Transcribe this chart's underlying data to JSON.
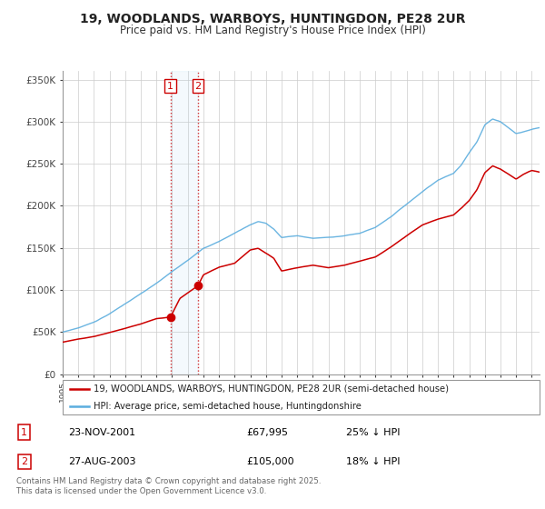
{
  "title": "19, WOODLANDS, WARBOYS, HUNTINGDON, PE28 2UR",
  "subtitle": "Price paid vs. HM Land Registry's House Price Index (HPI)",
  "legend_line1": "19, WOODLANDS, WARBOYS, HUNTINGDON, PE28 2UR (semi-detached house)",
  "legend_line2": "HPI: Average price, semi-detached house, Huntingdonshire",
  "sale1_date": "23-NOV-2001",
  "sale1_price": "£67,995",
  "sale1_hpi": "25% ↓ HPI",
  "sale2_date": "27-AUG-2003",
  "sale2_price": "£105,000",
  "sale2_hpi": "18% ↓ HPI",
  "footer": "Contains HM Land Registry data © Crown copyright and database right 2025.\nThis data is licensed under the Open Government Licence v3.0.",
  "hpi_color": "#5badde",
  "price_color": "#cc0000",
  "sale1_x": 2001.9,
  "sale1_y": 67995,
  "sale2_x": 2003.65,
  "sale2_y": 105000,
  "ylim": [
    0,
    360000
  ],
  "xlim_start": 1995,
  "xlim_end": 2025.5,
  "grid_color": "#cccccc",
  "hpi_knots_x": [
    1995,
    1996,
    1997,
    1998,
    1999,
    2000,
    2001,
    2002,
    2003,
    2004,
    2005,
    2006,
    2007,
    2007.5,
    2008,
    2008.5,
    2009,
    2010,
    2011,
    2012,
    2013,
    2014,
    2015,
    2016,
    2017,
    2018,
    2019,
    2020,
    2020.5,
    2021,
    2021.5,
    2022,
    2022.5,
    2023,
    2023.5,
    2024,
    2024.5,
    2025,
    2025.5
  ],
  "hpi_knots_y": [
    50000,
    55000,
    62000,
    72000,
    84000,
    96000,
    108000,
    122000,
    135000,
    150000,
    158000,
    168000,
    178000,
    182000,
    180000,
    173000,
    163000,
    165000,
    162000,
    163000,
    165000,
    168000,
    175000,
    188000,
    203000,
    218000,
    232000,
    240000,
    250000,
    265000,
    278000,
    298000,
    305000,
    302000,
    295000,
    288000,
    290000,
    293000,
    295000
  ],
  "price_knots_x": [
    1995,
    1996,
    1997,
    1998,
    1999,
    2000,
    2001,
    2001.9,
    2002.5,
    2003.65,
    2004,
    2005,
    2006,
    2007,
    2007.5,
    2008,
    2008.5,
    2009,
    2010,
    2011,
    2012,
    2013,
    2014,
    2015,
    2016,
    2017,
    2018,
    2019,
    2020,
    2020.5,
    2021,
    2021.5,
    2022,
    2022.5,
    2023,
    2023.5,
    2024,
    2024.5,
    2025,
    2025.5
  ],
  "price_knots_y": [
    38000,
    42000,
    45000,
    50000,
    55000,
    60000,
    66000,
    67995,
    90000,
    105000,
    118000,
    127000,
    132000,
    148000,
    150000,
    144000,
    138000,
    123000,
    127000,
    130000,
    127000,
    130000,
    135000,
    140000,
    152000,
    165000,
    178000,
    185000,
    190000,
    198000,
    207000,
    220000,
    240000,
    248000,
    244000,
    238000,
    232000,
    238000,
    242000,
    240000
  ]
}
